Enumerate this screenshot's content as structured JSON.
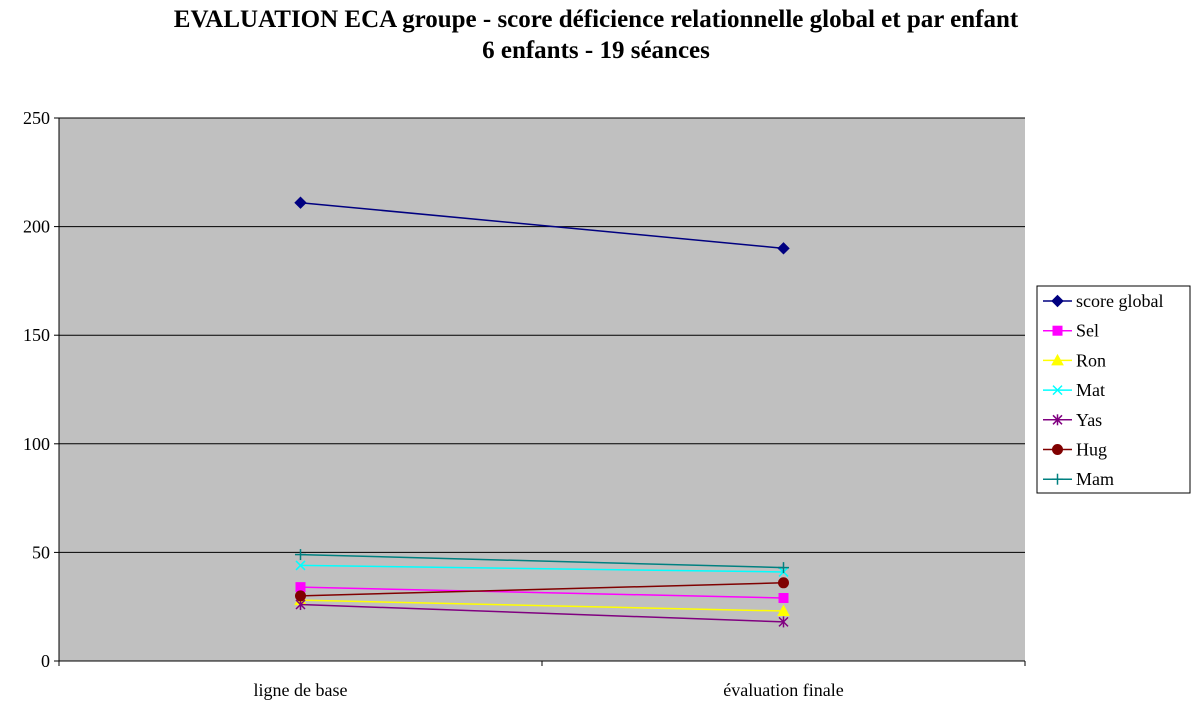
{
  "chart_data": {
    "type": "line",
    "title": "EVALUATION ECA groupe - score déficience relationnelle global et par enfant",
    "subtitle": "6 enfants - 19 séances",
    "categories": [
      "ligne de base",
      "évaluation finale"
    ],
    "ylim": [
      0,
      250
    ],
    "yticks": [
      0,
      50,
      100,
      150,
      200,
      250
    ],
    "grid": true,
    "legend": "right",
    "plot_background": "#C0C0C0",
    "series": [
      {
        "name": "score global",
        "values": [
          211,
          190
        ],
        "color": "#000080",
        "marker": "diamond"
      },
      {
        "name": "Sel",
        "values": [
          34,
          29
        ],
        "color": "#FF00FF",
        "marker": "square"
      },
      {
        "name": "Ron",
        "values": [
          28,
          23
        ],
        "color": "#FFFF00",
        "marker": "triangle"
      },
      {
        "name": "Mat",
        "values": [
          44,
          41
        ],
        "color": "#00FFFF",
        "marker": "x"
      },
      {
        "name": "Yas",
        "values": [
          26,
          18
        ],
        "color": "#800080",
        "marker": "asterisk"
      },
      {
        "name": "Hug",
        "values": [
          30,
          36
        ],
        "color": "#800000",
        "marker": "circle"
      },
      {
        "name": "Mam",
        "values": [
          49,
          43
        ],
        "color": "#008080",
        "marker": "plus"
      }
    ]
  }
}
